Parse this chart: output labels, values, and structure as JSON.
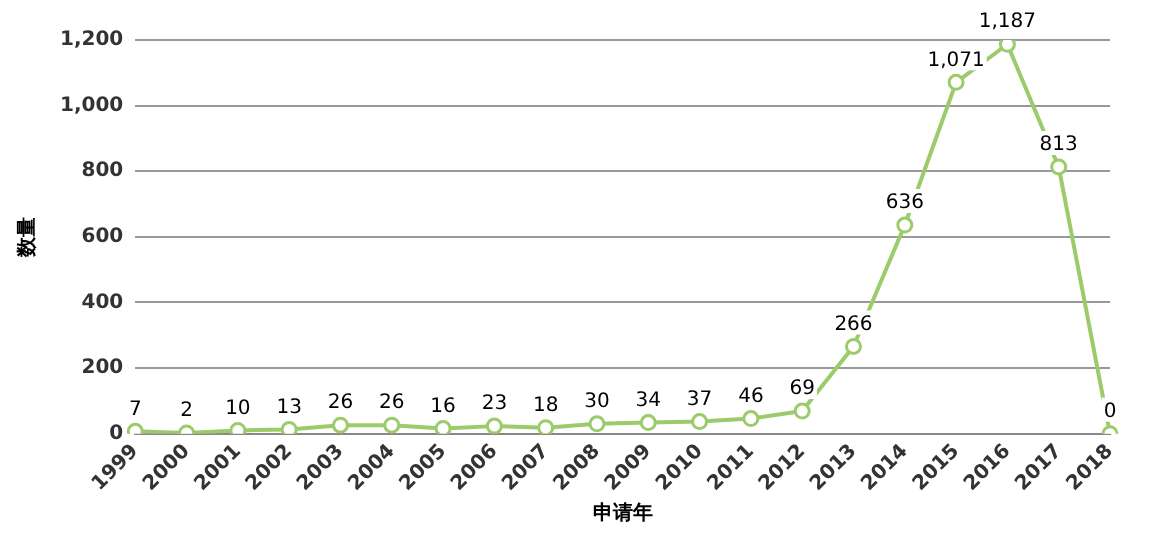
{
  "chart_data": {
    "type": "line",
    "xlabel": "申请年",
    "ylabel": "数量",
    "categories": [
      "1999",
      "2000",
      "2001",
      "2002",
      "2003",
      "2004",
      "2005",
      "2006",
      "2007",
      "2008",
      "2009",
      "2010",
      "2011",
      "2012",
      "2013",
      "2014",
      "2015",
      "2016",
      "2017",
      "2018"
    ],
    "series": [
      {
        "color": "#9bcb6b",
        "values": [
          7,
          2,
          10,
          13,
          26,
          26,
          16,
          23,
          18,
          30,
          34,
          37,
          46,
          69,
          266,
          636,
          1071,
          1187,
          813,
          0
        ],
        "value_labels": [
          "7",
          "2",
          "10",
          "13",
          "26",
          "26",
          "16",
          "23",
          "18",
          "30",
          "34",
          "37",
          "46",
          "69",
          "266",
          "636",
          "1,071",
          "1,187",
          "813",
          "0"
        ]
      }
    ],
    "ylim": [
      0,
      1200
    ],
    "yticks": [
      0,
      {
        "value": 200,
        "label": "200"
      },
      {
        "value": 400,
        "label": "400"
      },
      {
        "value": 600,
        "label": "600"
      },
      {
        "value": 800,
        "label": "800"
      },
      {
        "value": 1000,
        "label": "1,000"
      },
      {
        "value": 1200,
        "label": "1,200"
      }
    ],
    "grid": "y",
    "legend": false,
    "marker": "circle",
    "line_style": "solid"
  }
}
